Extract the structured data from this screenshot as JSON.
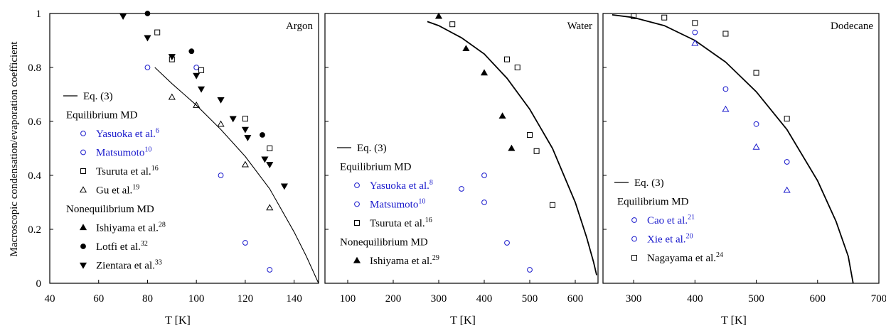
{
  "figure": {
    "ylabel": "Macroscopic condensation/evaporation coefficient",
    "yticks": [
      "0",
      "0.2",
      "0.4",
      "0.6",
      "0.8",
      "1"
    ],
    "colors": {
      "blue": "#1a1acc",
      "black": "#000000"
    }
  },
  "chart_data": [
    {
      "type": "scatter",
      "title": "Argon",
      "xlabel": "T [K]",
      "xlim": [
        40,
        150
      ],
      "ylim": [
        0,
        1
      ],
      "xticks": [
        "40",
        "60",
        "80",
        "100",
        "120",
        "140"
      ],
      "legend_position": "left",
      "line": {
        "name": "Eq. (3)",
        "x": [
          83,
          90,
          100,
          110,
          120,
          130,
          140,
          145,
          150
        ],
        "y": [
          0.8,
          0.74,
          0.66,
          0.57,
          0.47,
          0.35,
          0.19,
          0.1,
          0.0
        ]
      },
      "legend": [
        {
          "kind": "line",
          "text": "Eq. (3)",
          "sup": "",
          "color": "black"
        },
        {
          "kind": "header",
          "text": "Equilibrium MD",
          "sup": "",
          "color": "black"
        },
        {
          "kind": "circle",
          "text": "Yasuoka et al.",
          "sup": "6",
          "color": "blue"
        },
        {
          "kind": "circle",
          "text": "Matsumoto",
          "sup": "10",
          "color": "blue"
        },
        {
          "kind": "square",
          "text": "Tsuruta et al.",
          "sup": "16",
          "color": "black"
        },
        {
          "kind": "triangle",
          "text": "Gu et al.",
          "sup": "19",
          "color": "black"
        },
        {
          "kind": "header",
          "text": "Nonequilibrium MD",
          "sup": "",
          "color": "black"
        },
        {
          "kind": "triangle-filled",
          "text": "Ishiyama et al.",
          "sup": "28",
          "color": "black"
        },
        {
          "kind": "circle-filled",
          "text": "Lotfi et al.",
          "sup": "32",
          "color": "black"
        },
        {
          "kind": "tri-down-filled",
          "text": "Zientara et al.",
          "sup": "33",
          "color": "black"
        }
      ],
      "series": [
        {
          "marker": "circle",
          "color": "blue",
          "points": [
            [
              80,
              0.8
            ],
            [
              100,
              0.8
            ],
            [
              110,
              0.4
            ],
            [
              120,
              0.15
            ],
            [
              130,
              0.05
            ]
          ]
        },
        {
          "marker": "square",
          "color": "black",
          "points": [
            [
              84,
              0.93
            ],
            [
              90,
              0.83
            ],
            [
              102,
              0.79
            ],
            [
              120,
              0.61
            ],
            [
              130,
              0.5
            ]
          ]
        },
        {
          "marker": "triangle",
          "color": "black",
          "points": [
            [
              90,
              0.69
            ],
            [
              100,
              0.66
            ],
            [
              110,
              0.59
            ],
            [
              120,
              0.44
            ],
            [
              130,
              0.28
            ]
          ]
        },
        {
          "marker": "circle-filled",
          "color": "black",
          "points": [
            [
              80,
              1.0
            ],
            [
              98,
              0.86
            ],
            [
              127,
              0.55
            ]
          ]
        },
        {
          "marker": "tri-down-filled",
          "color": "black",
          "points": [
            [
              70,
              0.99
            ],
            [
              80,
              0.91
            ],
            [
              90,
              0.84
            ],
            [
              100,
              0.77
            ],
            [
              102,
              0.72
            ],
            [
              110,
              0.68
            ],
            [
              115,
              0.61
            ],
            [
              120,
              0.57
            ],
            [
              121,
              0.54
            ],
            [
              128,
              0.46
            ],
            [
              130,
              0.44
            ],
            [
              136,
              0.36
            ]
          ]
        }
      ]
    },
    {
      "type": "scatter",
      "title": "Water",
      "xlabel": "T [K]",
      "xlim": [
        50,
        650
      ],
      "ylim": [
        0,
        1
      ],
      "xticks": [
        "100",
        "200",
        "300",
        "400",
        "500",
        "600"
      ],
      "legend_position": "left",
      "line": {
        "name": "Eq. (3)",
        "x": [
          275,
          300,
          350,
          400,
          450,
          500,
          550,
          600,
          625,
          640,
          647
        ],
        "y": [
          0.97,
          0.955,
          0.91,
          0.85,
          0.76,
          0.645,
          0.5,
          0.3,
          0.17,
          0.08,
          0.03
        ]
      },
      "legend": [
        {
          "kind": "line",
          "text": "Eq. (3)",
          "sup": "",
          "color": "black"
        },
        {
          "kind": "header",
          "text": "Equilibrium MD",
          "sup": "",
          "color": "black"
        },
        {
          "kind": "circle",
          "text": "Yasuoka et al.",
          "sup": "8",
          "color": "blue"
        },
        {
          "kind": "circle",
          "text": "Matsumoto",
          "sup": "10",
          "color": "blue"
        },
        {
          "kind": "square",
          "text": "Tsuruta et al.",
          "sup": "16",
          "color": "black"
        },
        {
          "kind": "header",
          "text": "Nonequilibrium MD",
          "sup": "",
          "color": "black"
        },
        {
          "kind": "triangle-filled",
          "text": "Ishiyama et al.",
          "sup": "29",
          "color": "black"
        }
      ],
      "series": [
        {
          "marker": "circle",
          "color": "blue",
          "points": [
            [
              350,
              0.35
            ],
            [
              400,
              0.4
            ],
            [
              400,
              0.3
            ],
            [
              450,
              0.15
            ],
            [
              500,
              0.05
            ]
          ]
        },
        {
          "marker": "square",
          "color": "black",
          "points": [
            [
              330,
              0.96
            ],
            [
              450,
              0.83
            ],
            [
              473,
              0.8
            ],
            [
              500,
              0.55
            ],
            [
              515,
              0.49
            ],
            [
              550,
              0.29
            ]
          ]
        },
        {
          "marker": "triangle-filled",
          "color": "black",
          "points": [
            [
              300,
              0.99
            ],
            [
              360,
              0.87
            ],
            [
              400,
              0.78
            ],
            [
              440,
              0.62
            ],
            [
              460,
              0.5
            ]
          ]
        }
      ]
    },
    {
      "type": "scatter",
      "title": "Dodecane",
      "xlabel": "T [K]",
      "xlim": [
        250,
        700
      ],
      "ylim": [
        0,
        1
      ],
      "xticks": [
        "300",
        "400",
        "500",
        "600",
        "700"
      ],
      "legend_position": "left",
      "line": {
        "name": "Eq. (3)",
        "x": [
          265,
          300,
          350,
          400,
          450,
          500,
          550,
          600,
          630,
          650,
          658
        ],
        "y": [
          0.995,
          0.985,
          0.955,
          0.9,
          0.82,
          0.71,
          0.57,
          0.38,
          0.23,
          0.1,
          0.0
        ]
      },
      "legend": [
        {
          "kind": "line",
          "text": "Eq. (3)",
          "sup": "",
          "color": "black"
        },
        {
          "kind": "header",
          "text": "Equilibrium MD",
          "sup": "",
          "color": "black"
        },
        {
          "kind": "circle",
          "text": "Cao et al.",
          "sup": "21",
          "color": "blue"
        },
        {
          "kind": "circle",
          "text": "Xie et al.",
          "sup": "20",
          "color": "blue"
        },
        {
          "kind": "square",
          "text": "Nagayama et al.",
          "sup": "24",
          "color": "black"
        }
      ],
      "series": [
        {
          "marker": "circle",
          "color": "blue",
          "points": [
            [
              400,
              0.93
            ],
            [
              450,
              0.72
            ],
            [
              500,
              0.59
            ],
            [
              550,
              0.45
            ]
          ]
        },
        {
          "marker": "triangle",
          "color": "blue",
          "points": [
            [
              400,
              0.89
            ],
            [
              450,
              0.645
            ],
            [
              500,
              0.505
            ],
            [
              550,
              0.345
            ]
          ]
        },
        {
          "marker": "square",
          "color": "black",
          "points": [
            [
              300,
              0.99
            ],
            [
              350,
              0.985
            ],
            [
              400,
              0.965
            ],
            [
              450,
              0.925
            ],
            [
              500,
              0.78
            ],
            [
              550,
              0.61
            ]
          ]
        }
      ]
    }
  ]
}
